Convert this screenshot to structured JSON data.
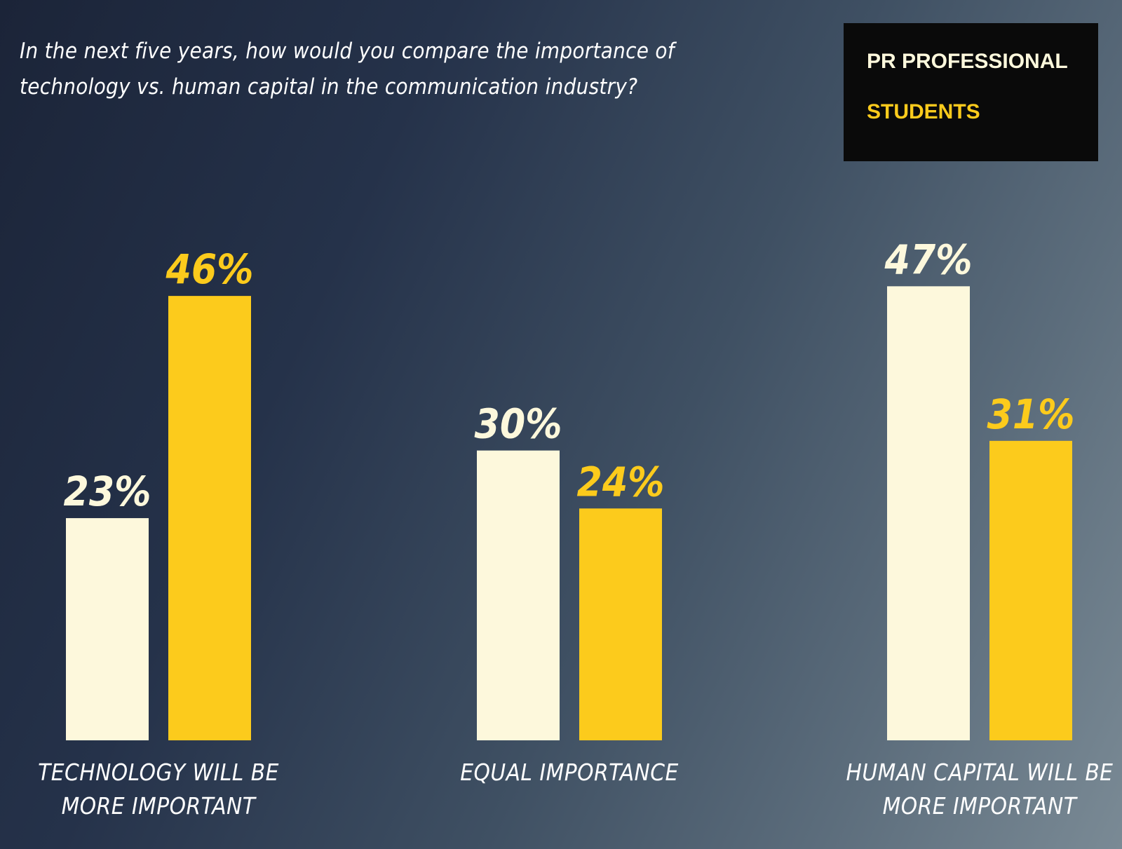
{
  "colors": {
    "professional": "#fdf8dc",
    "students": "#fccb1c"
  },
  "chart_data": {
    "type": "bar",
    "title": "In the next five years, how would you compare the importance of technology vs. human capital in the communication industry?",
    "legend_position": "top-right",
    "grid": false,
    "categories": [
      [
        "TECHNOLOGY WILL BE",
        "MORE IMPORTANT"
      ],
      [
        "EQUAL IMPORTANCE"
      ],
      [
        "HUMAN CAPITAL WILL BE",
        "MORE IMPORTANT"
      ]
    ],
    "series": [
      {
        "name": "PR PROFESSIONAL",
        "values": [
          23,
          30,
          47
        ],
        "labels": [
          "23%",
          "30%",
          "47%"
        ]
      },
      {
        "name": "STUDENTS",
        "values": [
          46,
          24,
          31
        ],
        "labels": [
          "46%",
          "24%",
          "31%"
        ]
      }
    ],
    "ylim": [
      0,
      100
    ]
  }
}
